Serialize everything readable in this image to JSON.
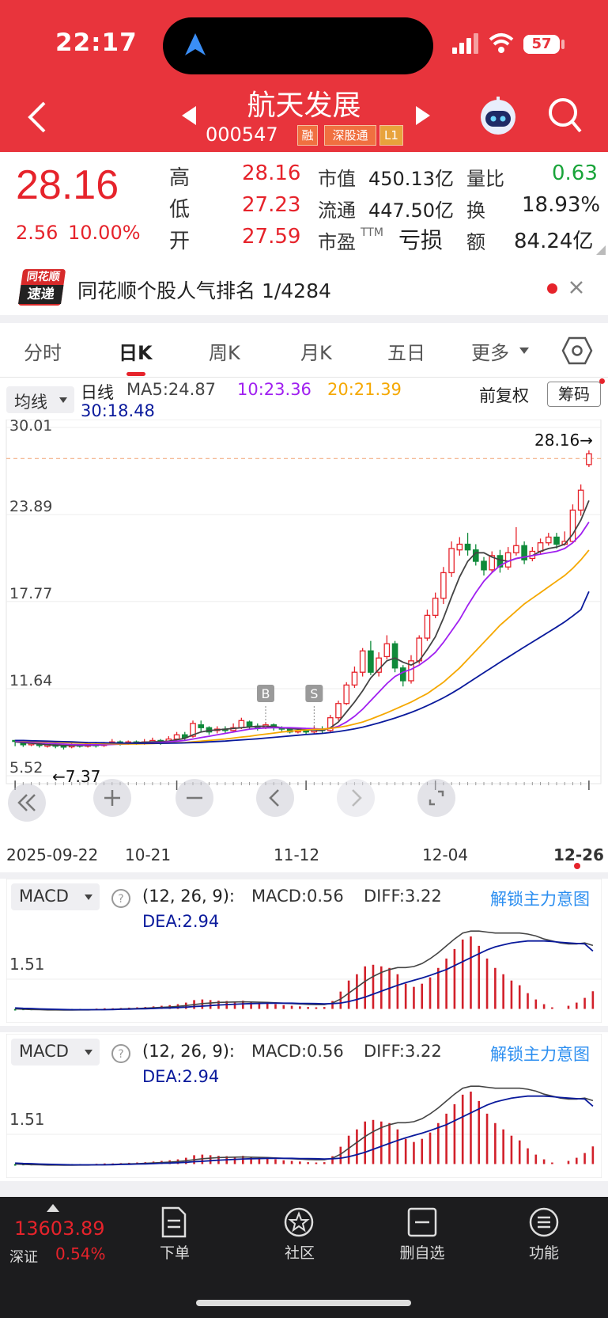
{
  "status": {
    "time": "22:17",
    "battery": "57"
  },
  "header": {
    "title": "航天发展",
    "code": "000547",
    "tags": [
      "融",
      "深股通",
      "L1"
    ]
  },
  "quote": {
    "price": "28.16",
    "change": "2.56",
    "change_pct": "10.00%",
    "high_label": "高",
    "high": "28.16",
    "low_label": "低",
    "low": "27.23",
    "open_label": "开",
    "open": "27.59",
    "mcap_label": "市值",
    "mcap": "450.13亿",
    "float_label": "流通",
    "float": "447.50亿",
    "pe_label": "市盈",
    "pe_sup": "TTM",
    "pe": "亏损",
    "vr_label": "量比",
    "vr": "0.63",
    "turn_label": "换",
    "turn": "18.93%",
    "amt_label": "额",
    "amt": "84.24亿"
  },
  "banner": {
    "logo_top": "同花顺",
    "logo_bottom": "速递",
    "text": "同花顺个股人气排名 1/4284"
  },
  "tabs": [
    "分时",
    "日K",
    "周K",
    "月K",
    "五日",
    "更多"
  ],
  "active_tab": "日K",
  "ma_bar": {
    "selector": "均线",
    "label": "日线",
    "ma5": "MA5:24.87",
    "ma10": "10:23.36",
    "ma20": "20:21.39",
    "ma30": "30:18.48",
    "adjust": "前复权",
    "chip": "筹码"
  },
  "colors": {
    "up": "#e6232b",
    "down": "#0f8a3a",
    "ma5": "#444444",
    "ma10": "#a020f0",
    "ma20": "#f5a800",
    "ma30": "#0a1a9c",
    "header": "#e8343c",
    "link": "#2b8ef0"
  },
  "chart_data": [
    {
      "type": "candlestick",
      "y_ticks": [
        "30.01",
        "23.89",
        "17.77",
        "11.64",
        "5.52"
      ],
      "ylim": [
        5.52,
        30.01
      ],
      "x_ticks": [
        "2025-09-22",
        "10-21",
        "11-12",
        "12-04",
        "12-26"
      ],
      "max_label": "28.16→",
      "min_label": "←7.37",
      "markers": [
        "B",
        "S"
      ],
      "candles": [
        [
          8.0,
          7.95,
          8.05,
          7.6
        ],
        [
          7.8,
          7.7,
          8.0,
          7.55
        ],
        [
          7.7,
          7.8,
          7.9,
          7.6
        ],
        [
          7.8,
          7.65,
          7.9,
          7.5
        ],
        [
          7.6,
          7.7,
          7.8,
          7.5
        ],
        [
          7.7,
          7.6,
          7.85,
          7.45
        ],
        [
          7.6,
          7.55,
          7.7,
          7.37
        ],
        [
          7.55,
          7.7,
          7.8,
          7.45
        ],
        [
          7.7,
          7.6,
          7.75,
          7.5
        ],
        [
          7.6,
          7.75,
          7.85,
          7.5
        ],
        [
          7.7,
          7.65,
          7.9,
          7.5
        ],
        [
          7.65,
          7.8,
          7.9,
          7.55
        ],
        [
          7.8,
          7.9,
          8.1,
          7.7
        ],
        [
          7.9,
          7.8,
          8.0,
          7.65
        ],
        [
          7.8,
          7.9,
          8.0,
          7.7
        ],
        [
          7.9,
          7.8,
          8.0,
          7.7
        ],
        [
          7.8,
          7.9,
          8.1,
          7.7
        ],
        [
          7.9,
          8.0,
          8.2,
          7.8
        ],
        [
          8.0,
          7.9,
          8.1,
          7.7
        ],
        [
          7.9,
          8.1,
          8.3,
          7.8
        ],
        [
          8.1,
          8.4,
          8.6,
          8.0
        ],
        [
          8.4,
          8.2,
          8.6,
          8.0
        ],
        [
          8.3,
          9.2,
          9.4,
          8.2
        ],
        [
          9.1,
          8.9,
          9.4,
          8.6
        ],
        [
          8.9,
          8.6,
          9.0,
          8.4
        ],
        [
          8.7,
          8.8,
          9.0,
          8.5
        ],
        [
          8.8,
          8.7,
          9.0,
          8.5
        ],
        [
          8.7,
          8.9,
          9.2,
          8.6
        ],
        [
          8.9,
          9.4,
          9.6,
          8.8
        ],
        [
          9.3,
          9.0,
          9.4,
          8.8
        ],
        [
          9.0,
          8.9,
          9.2,
          8.7
        ],
        [
          8.9,
          9.1,
          9.3,
          8.8
        ],
        [
          9.1,
          8.9,
          9.2,
          8.7
        ],
        [
          8.9,
          8.8,
          9.0,
          8.6
        ],
        [
          8.8,
          8.6,
          8.9,
          8.5
        ],
        [
          8.6,
          8.7,
          8.9,
          8.5
        ],
        [
          8.7,
          8.6,
          8.8,
          8.4
        ],
        [
          8.6,
          8.8,
          9.0,
          8.5
        ],
        [
          8.8,
          8.7,
          9.0,
          8.5
        ],
        [
          8.7,
          9.6,
          9.8,
          8.6
        ],
        [
          9.6,
          10.6,
          10.8,
          9.4
        ],
        [
          10.6,
          11.9,
          12.1,
          10.5
        ],
        [
          11.9,
          12.8,
          13.2,
          11.7
        ],
        [
          12.8,
          14.3,
          14.5,
          12.5
        ],
        [
          14.3,
          12.8,
          15.0,
          12.6
        ],
        [
          12.8,
          13.8,
          14.2,
          12.5
        ],
        [
          13.9,
          14.8,
          15.4,
          13.7
        ],
        [
          14.8,
          13.1,
          15.0,
          12.8
        ],
        [
          13.1,
          12.2,
          13.3,
          11.8
        ],
        [
          12.2,
          13.6,
          14.0,
          12.0
        ],
        [
          13.6,
          15.2,
          15.4,
          13.4
        ],
        [
          15.2,
          16.8,
          17.2,
          15.0
        ],
        [
          16.8,
          18.0,
          18.4,
          16.6
        ],
        [
          18.0,
          19.8,
          20.2,
          17.6
        ],
        [
          19.8,
          21.5,
          22.0,
          19.5
        ],
        [
          21.4,
          21.8,
          22.3,
          21.0
        ],
        [
          21.8,
          21.4,
          22.6,
          21.0
        ],
        [
          21.4,
          20.6,
          21.8,
          20.3
        ],
        [
          20.6,
          20.0,
          20.9,
          19.6
        ],
        [
          20.0,
          21.0,
          21.3,
          19.8
        ],
        [
          21.0,
          20.2,
          21.4,
          19.8
        ],
        [
          20.2,
          21.2,
          21.6,
          20.0
        ],
        [
          21.2,
          21.7,
          23.0,
          21.0
        ],
        [
          21.7,
          20.7,
          22.0,
          20.4
        ],
        [
          20.8,
          21.3,
          21.6,
          20.6
        ],
        [
          21.3,
          21.9,
          22.2,
          21.1
        ],
        [
          21.9,
          22.3,
          22.6,
          21.7
        ],
        [
          22.3,
          21.8,
          22.6,
          21.5
        ],
        [
          21.8,
          22.0,
          22.7,
          21.7
        ],
        [
          22.0,
          24.2,
          24.6,
          21.9
        ],
        [
          24.2,
          25.6,
          26.0,
          23.8
        ],
        [
          27.4,
          28.16,
          28.4,
          27.23
        ]
      ],
      "series": [
        {
          "name": "MA5",
          "values": [
            7.9,
            7.85,
            7.8,
            7.75,
            7.7,
            7.68,
            7.66,
            7.65,
            7.65,
            7.65,
            7.68,
            7.7,
            7.75,
            7.8,
            7.82,
            7.85,
            7.88,
            7.9,
            7.92,
            7.95,
            8.05,
            8.15,
            8.4,
            8.6,
            8.7,
            8.75,
            8.8,
            8.85,
            8.9,
            8.95,
            9.0,
            9.0,
            8.98,
            8.9,
            8.85,
            8.8,
            8.75,
            8.72,
            8.7,
            8.9,
            9.3,
            10.0,
            10.7,
            11.5,
            12.4,
            13.0,
            13.6,
            13.8,
            13.5,
            13.3,
            13.6,
            14.4,
            15.3,
            16.6,
            18.1,
            19.5,
            20.6,
            21.2,
            21.2,
            20.9,
            20.7,
            20.6,
            20.8,
            20.9,
            21.0,
            21.3,
            21.5,
            21.6,
            21.8,
            22.5,
            23.5,
            24.87
          ]
        },
        {
          "name": "MA10",
          "values": [
            7.95,
            7.92,
            7.88,
            7.85,
            7.8,
            7.78,
            7.75,
            7.72,
            7.7,
            7.7,
            7.7,
            7.7,
            7.72,
            7.74,
            7.76,
            7.78,
            7.8,
            7.83,
            7.86,
            7.9,
            7.95,
            8.0,
            8.1,
            8.2,
            8.3,
            8.4,
            8.5,
            8.6,
            8.7,
            8.8,
            8.85,
            8.88,
            8.9,
            8.9,
            8.9,
            8.88,
            8.85,
            8.83,
            8.8,
            8.85,
            9.0,
            9.3,
            9.7,
            10.2,
            10.8,
            11.4,
            12.0,
            12.5,
            12.8,
            13.0,
            13.3,
            13.7,
            14.2,
            14.9,
            15.7,
            16.5,
            17.5,
            18.4,
            19.2,
            19.8,
            20.3,
            20.6,
            20.8,
            20.9,
            21.0,
            21.1,
            21.2,
            21.3,
            21.5,
            21.9,
            22.5,
            23.36
          ]
        },
        {
          "name": "MA20",
          "values": [
            8.0,
            7.98,
            7.95,
            7.92,
            7.9,
            7.88,
            7.86,
            7.84,
            7.82,
            7.8,
            7.8,
            7.78,
            7.77,
            7.76,
            7.76,
            7.76,
            7.77,
            7.78,
            7.8,
            7.82,
            7.84,
            7.86,
            7.9,
            7.95,
            8.0,
            8.05,
            8.1,
            8.17,
            8.24,
            8.3,
            8.38,
            8.45,
            8.52,
            8.6,
            8.65,
            8.7,
            8.74,
            8.78,
            8.8,
            8.85,
            8.92,
            9.02,
            9.15,
            9.3,
            9.5,
            9.72,
            9.95,
            10.2,
            10.45,
            10.7,
            11.0,
            11.3,
            11.7,
            12.1,
            12.6,
            13.1,
            13.7,
            14.3,
            14.9,
            15.5,
            16.1,
            16.6,
            17.1,
            17.6,
            18.0,
            18.4,
            18.8,
            19.2,
            19.6,
            20.1,
            20.7,
            21.39
          ]
        },
        {
          "name": "MA30",
          "values": [
            8.0,
            8.0,
            7.98,
            7.97,
            7.95,
            7.93,
            7.92,
            7.9,
            7.88,
            7.86,
            7.85,
            7.84,
            7.83,
            7.82,
            7.81,
            7.8,
            7.8,
            7.8,
            7.8,
            7.81,
            7.82,
            7.83,
            7.85,
            7.87,
            7.9,
            7.93,
            7.96,
            8.0,
            8.04,
            8.08,
            8.12,
            8.17,
            8.22,
            8.27,
            8.32,
            8.37,
            8.42,
            8.46,
            8.5,
            8.56,
            8.63,
            8.72,
            8.82,
            8.94,
            9.08,
            9.23,
            9.4,
            9.58,
            9.77,
            9.97,
            10.2,
            10.45,
            10.72,
            11.0,
            11.32,
            11.66,
            12.03,
            12.4,
            12.77,
            13.13,
            13.5,
            13.86,
            14.22,
            14.57,
            14.92,
            15.27,
            15.62,
            15.97,
            16.34,
            16.75,
            17.2,
            18.48
          ]
        }
      ]
    },
    {
      "type": "bar",
      "indicator": "MACD",
      "params": "(12, 26, 9):",
      "macd_label": "MACD:0.56",
      "diff_label": "DIFF:3.22",
      "dea_label": "DEA:2.94",
      "axis_tick": "1.51",
      "link": "解锁主力意图",
      "series": [
        {
          "name": "MACD",
          "values": [
            -0.05,
            -0.04,
            -0.04,
            -0.03,
            -0.03,
            -0.02,
            -0.02,
            -0.01,
            -0.01,
            0.0,
            0.01,
            0.02,
            0.02,
            0.03,
            0.04,
            0.05,
            0.06,
            0.08,
            0.1,
            0.12,
            0.15,
            0.2,
            0.28,
            0.3,
            0.28,
            0.26,
            0.25,
            0.24,
            0.26,
            0.22,
            0.2,
            0.18,
            0.15,
            0.12,
            0.1,
            0.08,
            0.06,
            0.05,
            0.06,
            0.25,
            0.55,
            0.9,
            1.1,
            1.35,
            1.4,
            1.35,
            1.3,
            1.1,
            0.8,
            0.7,
            0.8,
            1.0,
            1.3,
            1.6,
            1.9,
            2.2,
            2.3,
            2.0,
            1.6,
            1.3,
            1.1,
            0.9,
            0.75,
            0.5,
            0.3,
            0.15,
            0.05,
            0.0,
            0.1,
            0.2,
            0.35,
            0.56
          ]
        },
        {
          "name": "DIFF",
          "values": [
            0.0,
            -0.02,
            -0.03,
            -0.04,
            -0.05,
            -0.05,
            -0.06,
            -0.06,
            -0.05,
            -0.05,
            -0.04,
            -0.03,
            -0.02,
            0.0,
            0.01,
            0.02,
            0.04,
            0.06,
            0.08,
            0.1,
            0.13,
            0.17,
            0.22,
            0.27,
            0.3,
            0.33,
            0.34,
            0.35,
            0.36,
            0.35,
            0.34,
            0.33,
            0.31,
            0.29,
            0.27,
            0.25,
            0.23,
            0.22,
            0.22,
            0.3,
            0.5,
            0.8,
            1.1,
            1.4,
            1.65,
            1.85,
            2.0,
            2.1,
            2.1,
            2.15,
            2.3,
            2.55,
            2.85,
            3.2,
            3.55,
            3.85,
            3.95,
            3.95,
            3.9,
            3.85,
            3.85,
            3.85,
            3.85,
            3.8,
            3.7,
            3.55,
            3.45,
            3.35,
            3.3,
            3.3,
            3.35,
            3.22
          ]
        },
        {
          "name": "DEA",
          "values": [
            0.05,
            0.03,
            0.02,
            0.0,
            -0.01,
            -0.02,
            -0.03,
            -0.04,
            -0.04,
            -0.04,
            -0.04,
            -0.04,
            -0.03,
            -0.02,
            -0.01,
            0.0,
            0.01,
            0.02,
            0.04,
            0.05,
            0.07,
            0.09,
            0.12,
            0.14,
            0.17,
            0.2,
            0.22,
            0.24,
            0.26,
            0.27,
            0.28,
            0.29,
            0.29,
            0.29,
            0.29,
            0.28,
            0.28,
            0.27,
            0.26,
            0.27,
            0.3,
            0.37,
            0.48,
            0.6,
            0.75,
            0.9,
            1.05,
            1.2,
            1.33,
            1.45,
            1.57,
            1.7,
            1.85,
            2.0,
            2.2,
            2.4,
            2.6,
            2.8,
            3.0,
            3.15,
            3.25,
            3.35,
            3.4,
            3.45,
            3.45,
            3.45,
            3.42,
            3.38,
            3.35,
            3.32,
            3.3,
            2.94
          ]
        }
      ]
    },
    {
      "type": "bar",
      "indicator": "MACD",
      "params": "(12, 26, 9):",
      "macd_label": "MACD:0.56",
      "diff_label": "DIFF:3.22",
      "dea_label": "DEA:2.94",
      "axis_tick": "1.51",
      "link": "解锁主力意图"
    }
  ],
  "bottom": {
    "index_value": "13603.89",
    "index_name": "深证",
    "index_pct": "0.54%",
    "buttons": [
      "下单",
      "社区",
      "删自选",
      "功能"
    ]
  }
}
